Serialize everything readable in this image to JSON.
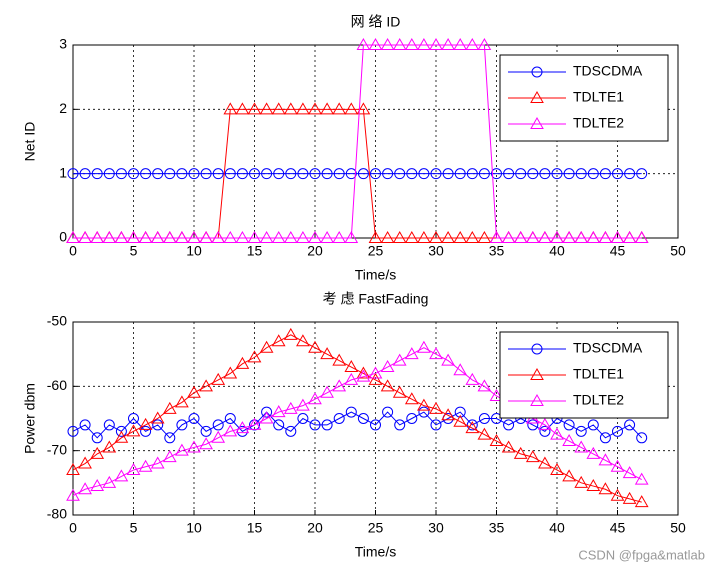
{
  "chart_data": [
    {
      "type": "line",
      "title": "网 络 ID",
      "xlabel": "Time/s",
      "ylabel": "Net ID",
      "x": [
        0,
        1,
        2,
        3,
        4,
        5,
        6,
        7,
        8,
        9,
        10,
        11,
        12,
        13,
        14,
        15,
        16,
        17,
        18,
        19,
        20,
        21,
        22,
        23,
        24,
        25,
        26,
        27,
        28,
        29,
        30,
        31,
        32,
        33,
        34,
        35,
        36,
        37,
        38,
        39,
        40,
        41,
        42,
        43,
        44,
        45,
        46,
        47
      ],
      "series": [
        {
          "name": "TDSCDMA",
          "color": "#0000ff",
          "marker": "circle",
          "values": [
            1,
            1,
            1,
            1,
            1,
            1,
            1,
            1,
            1,
            1,
            1,
            1,
            1,
            1,
            1,
            1,
            1,
            1,
            1,
            1,
            1,
            1,
            1,
            1,
            1,
            1,
            1,
            1,
            1,
            1,
            1,
            1,
            1,
            1,
            1,
            1,
            1,
            1,
            1,
            1,
            1,
            1,
            1,
            1,
            1,
            1,
            1,
            1
          ]
        },
        {
          "name": "TDLTE1",
          "color": "#ff0000",
          "marker": "triangle",
          "values": [
            0,
            0,
            0,
            0,
            0,
            0,
            0,
            0,
            0,
            0,
            0,
            0,
            0,
            2,
            2,
            2,
            2,
            2,
            2,
            2,
            2,
            2,
            2,
            2,
            2,
            0,
            0,
            0,
            0,
            0,
            0,
            0,
            0,
            0,
            0,
            0,
            0,
            0,
            0,
            0,
            0,
            0,
            0,
            0,
            0,
            0,
            0,
            0
          ]
        },
        {
          "name": "TDLTE2",
          "color": "#ff00ff",
          "marker": "triangle",
          "values": [
            0,
            0,
            0,
            0,
            0,
            0,
            0,
            0,
            0,
            0,
            0,
            0,
            0,
            0,
            0,
            0,
            0,
            0,
            0,
            0,
            0,
            0,
            0,
            0,
            3,
            3,
            3,
            3,
            3,
            3,
            3,
            3,
            3,
            3,
            3,
            0,
            0,
            0,
            0,
            0,
            0,
            0,
            0,
            0,
            0,
            0,
            0,
            0
          ]
        }
      ],
      "xlim": [
        0,
        50
      ],
      "ylim": [
        0,
        3
      ],
      "xticks": [
        0,
        5,
        10,
        15,
        20,
        25,
        30,
        35,
        40,
        45,
        50
      ],
      "yticks": [
        0,
        1,
        2,
        3
      ],
      "grid": true,
      "legend": "upper right"
    },
    {
      "type": "line",
      "title": "考 虑 FastFading",
      "xlabel": "Time/s",
      "ylabel": "Power dbm",
      "x": [
        0,
        1,
        2,
        3,
        4,
        5,
        6,
        7,
        8,
        9,
        10,
        11,
        12,
        13,
        14,
        15,
        16,
        17,
        18,
        19,
        20,
        21,
        22,
        23,
        24,
        25,
        26,
        27,
        28,
        29,
        30,
        31,
        32,
        33,
        34,
        35,
        36,
        37,
        38,
        39,
        40,
        41,
        42,
        43,
        44,
        45,
        46,
        47
      ],
      "series": [
        {
          "name": "TDSCDMA",
          "color": "#0000ff",
          "marker": "circle",
          "values": [
            -67,
            -66,
            -68,
            -66,
            -67,
            -65,
            -67,
            -66,
            -68,
            -66,
            -65,
            -67,
            -66,
            -65,
            -67,
            -66,
            -64,
            -66,
            -67,
            -65,
            -66,
            -66,
            -65,
            -64,
            -65,
            -66,
            -64,
            -66,
            -65,
            -64,
            -66,
            -65,
            -64,
            -66,
            -65,
            -65,
            -66,
            -65,
            -66,
            -67,
            -65,
            -66,
            -67,
            -66,
            -68,
            -67,
            -66,
            -68
          ]
        },
        {
          "name": "TDLTE1",
          "color": "#ff0000",
          "marker": "triangle",
          "values": [
            -73,
            -72,
            -70.5,
            -69.5,
            -68,
            -67,
            -66,
            -65,
            -63.5,
            -62.5,
            -61,
            -60,
            -59,
            -58,
            -56.5,
            -55.5,
            -54,
            -53,
            -52,
            -53,
            -54,
            -55,
            -56,
            -57,
            -58,
            -59,
            -60,
            -61,
            -62,
            -63,
            -63.5,
            -64.5,
            -65.5,
            -66.5,
            -67.5,
            -68.5,
            -69.5,
            -70.5,
            -71,
            -72,
            -73,
            -74,
            -75,
            -75.5,
            -76,
            -77,
            -77.5,
            -78
          ]
        },
        {
          "name": "TDLTE2",
          "color": "#ff00ff",
          "marker": "triangle",
          "values": [
            -77,
            -76,
            -75.5,
            -75,
            -74,
            -73,
            -72.5,
            -72,
            -71,
            -70,
            -69.5,
            -69,
            -68,
            -67,
            -66.5,
            -66,
            -65,
            -64,
            -63.5,
            -63,
            -62,
            -61,
            -60,
            -59,
            -58.5,
            -58,
            -57,
            -56,
            -55,
            -54,
            -55,
            -56,
            -57.5,
            -59,
            -60,
            -61.5,
            -62.5,
            -64,
            -65,
            -66,
            -67.5,
            -68.5,
            -69.5,
            -70.5,
            -71.5,
            -72.5,
            -73.5,
            -74.5
          ]
        }
      ],
      "xlim": [
        0,
        50
      ],
      "ylim": [
        -80,
        -50
      ],
      "xticks": [
        0,
        5,
        10,
        15,
        20,
        25,
        30,
        35,
        40,
        45,
        50
      ],
      "yticks": [
        -80,
        -70,
        -60,
        -50
      ],
      "grid": true,
      "legend": "upper right"
    }
  ],
  "watermark": "CSDN @fpga&matlab"
}
